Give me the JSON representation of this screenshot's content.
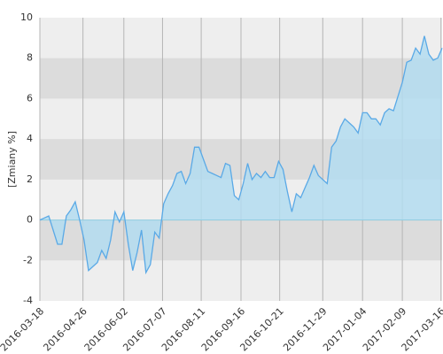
{
  "chart_data": {
    "type": "area",
    "y_label": "[Zmiany %]",
    "x": [
      "2016-03-18",
      "2016-03-22",
      "2016-03-26",
      "2016-03-30",
      "2016-04-03",
      "2016-04-07",
      "2016-04-11",
      "2016-04-15",
      "2016-04-19",
      "2016-04-23",
      "2016-04-27",
      "2016-05-01",
      "2016-05-05",
      "2016-05-09",
      "2016-05-13",
      "2016-05-17",
      "2016-05-21",
      "2016-05-25",
      "2016-05-29",
      "2016-06-02",
      "2016-06-06",
      "2016-06-10",
      "2016-06-14",
      "2016-06-18",
      "2016-06-22",
      "2016-06-26",
      "2016-06-30",
      "2016-07-04",
      "2016-07-08",
      "2016-07-12",
      "2016-07-16",
      "2016-07-20",
      "2016-07-24",
      "2016-07-28",
      "2016-08-01",
      "2016-08-05",
      "2016-08-09",
      "2016-08-13",
      "2016-08-17",
      "2016-08-21",
      "2016-08-25",
      "2016-08-29",
      "2016-09-02",
      "2016-09-06",
      "2016-09-10",
      "2016-09-14",
      "2016-09-18",
      "2016-09-22",
      "2016-09-26",
      "2016-09-30",
      "2016-10-04",
      "2016-10-08",
      "2016-10-12",
      "2016-10-16",
      "2016-10-20",
      "2016-10-24",
      "2016-10-28",
      "2016-11-01",
      "2016-11-05",
      "2016-11-09",
      "2016-11-13",
      "2016-11-17",
      "2016-11-21",
      "2016-11-25",
      "2016-11-29",
      "2016-12-03",
      "2016-12-07",
      "2016-12-11",
      "2016-12-15",
      "2016-12-19",
      "2016-12-23",
      "2016-12-27",
      "2016-12-31",
      "2017-01-04",
      "2017-01-08",
      "2017-01-12",
      "2017-01-16",
      "2017-01-20",
      "2017-01-24",
      "2017-01-28",
      "2017-02-01",
      "2017-02-05",
      "2017-02-09",
      "2017-02-13",
      "2017-02-17",
      "2017-02-21",
      "2017-02-25",
      "2017-03-01",
      "2017-03-05",
      "2017-03-09",
      "2017-03-13",
      "2017-03-17"
    ],
    "values": [
      0,
      0.1,
      0.2,
      -0.5,
      -1.2,
      -1.2,
      0.2,
      0.5,
      0.9,
      0,
      -1.0,
      -2.5,
      -2.3,
      -2.1,
      -1.5,
      -1.9,
      -1.0,
      0.4,
      -0.1,
      0.4,
      -1.2,
      -2.5,
      -1.6,
      -0.5,
      -2.6,
      -2.2,
      -0.6,
      -0.9,
      0.8,
      1.3,
      1.7,
      2.3,
      2.4,
      1.8,
      2.3,
      3.6,
      3.6,
      3.0,
      2.4,
      2.3,
      2.2,
      2.1,
      2.8,
      2.7,
      1.2,
      1.0,
      1.8,
      2.8,
      2.0,
      2.3,
      2.1,
      2.4,
      2.1,
      2.1,
      2.9,
      2.5,
      1.4,
      0.4,
      1.3,
      1.1,
      1.6,
      2.1,
      2.7,
      2.2,
      2.0,
      1.8,
      3.6,
      3.9,
      4.6,
      5.0,
      4.8,
      4.6,
      4.3,
      5.3,
      5.3,
      5.0,
      5.0,
      4.7,
      5.3,
      5.5,
      5.4,
      6.1,
      6.8,
      7.8,
      7.9,
      8.5,
      8.2,
      9.1,
      8.2,
      7.9,
      8.0,
      8.5
    ],
    "color": "#5aa9e6",
    "fill_color": "#b3dcf0",
    "xlim": [
      "2016-03-18",
      "2017-03-17"
    ],
    "xticks": [
      "2016-03-18",
      "2016-04-26",
      "2016-06-02",
      "2016-07-07",
      "2016-08-11",
      "2016-09-16",
      "2016-10-21",
      "2016-11-29",
      "2017-01-04",
      "2017-02-09",
      "2017-03-16"
    ],
    "ylim": [
      -4,
      10
    ],
    "yticks": [
      -4,
      -2,
      0,
      2,
      4,
      6,
      8,
      10
    ],
    "grid": true,
    "alternate_bands": true
  }
}
